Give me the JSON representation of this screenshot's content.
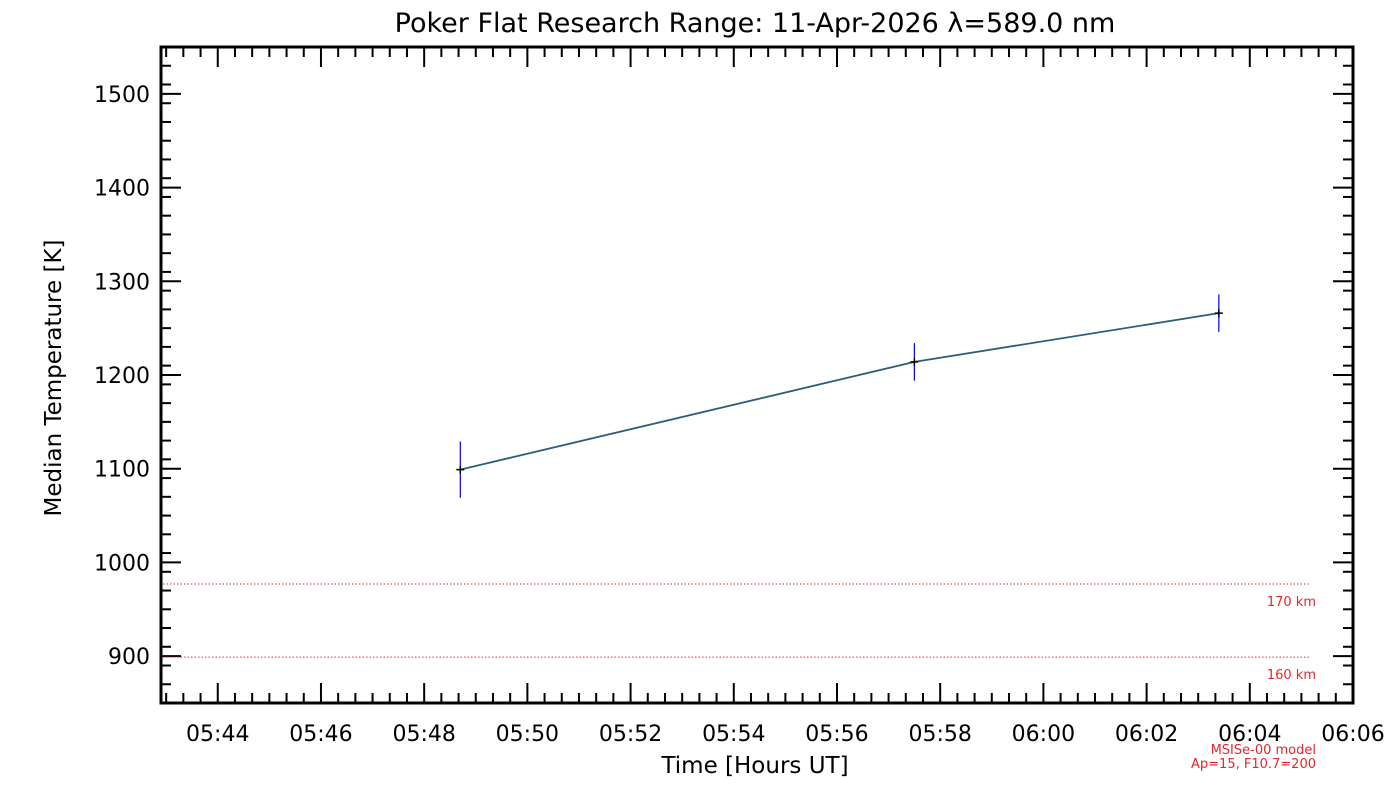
{
  "chart_data": {
    "type": "line",
    "title": "Poker Flat Research Range: 11-Apr-2026 λ=589.0 nm",
    "xlabel": "Time [Hours UT]",
    "ylabel": "Median Temperature [K]",
    "x_ticks": [
      "05:44",
      "05:46",
      "05:48",
      "05:50",
      "05:52",
      "05:54",
      "05:56",
      "05:58",
      "06:00",
      "06:02",
      "06:04",
      "06:06"
    ],
    "y_ticks": [
      900,
      1000,
      1100,
      1200,
      1300,
      1400,
      1500
    ],
    "xlim": [
      "05:42:54",
      "06:06:00"
    ],
    "ylim": [
      850,
      1550
    ],
    "grid": false,
    "series": [
      {
        "x": [
          "05:48:42",
          "05:57:30",
          "06:03:24"
        ],
        "y": [
          1099,
          1214,
          1266
        ],
        "error": [
          30,
          20,
          20
        ],
        "line_color": "#2f5d7a",
        "error_color": "#0000ff",
        "marker_color": "#000000"
      }
    ],
    "reference_lines": [
      {
        "label": "170 km",
        "y": 977,
        "color": "#e8262b"
      },
      {
        "label": "160 km",
        "y": 899,
        "color": "#e8262b"
      }
    ],
    "annotations": [
      "MSISe-00 model",
      "Ap=15, F10.7=200"
    ]
  }
}
